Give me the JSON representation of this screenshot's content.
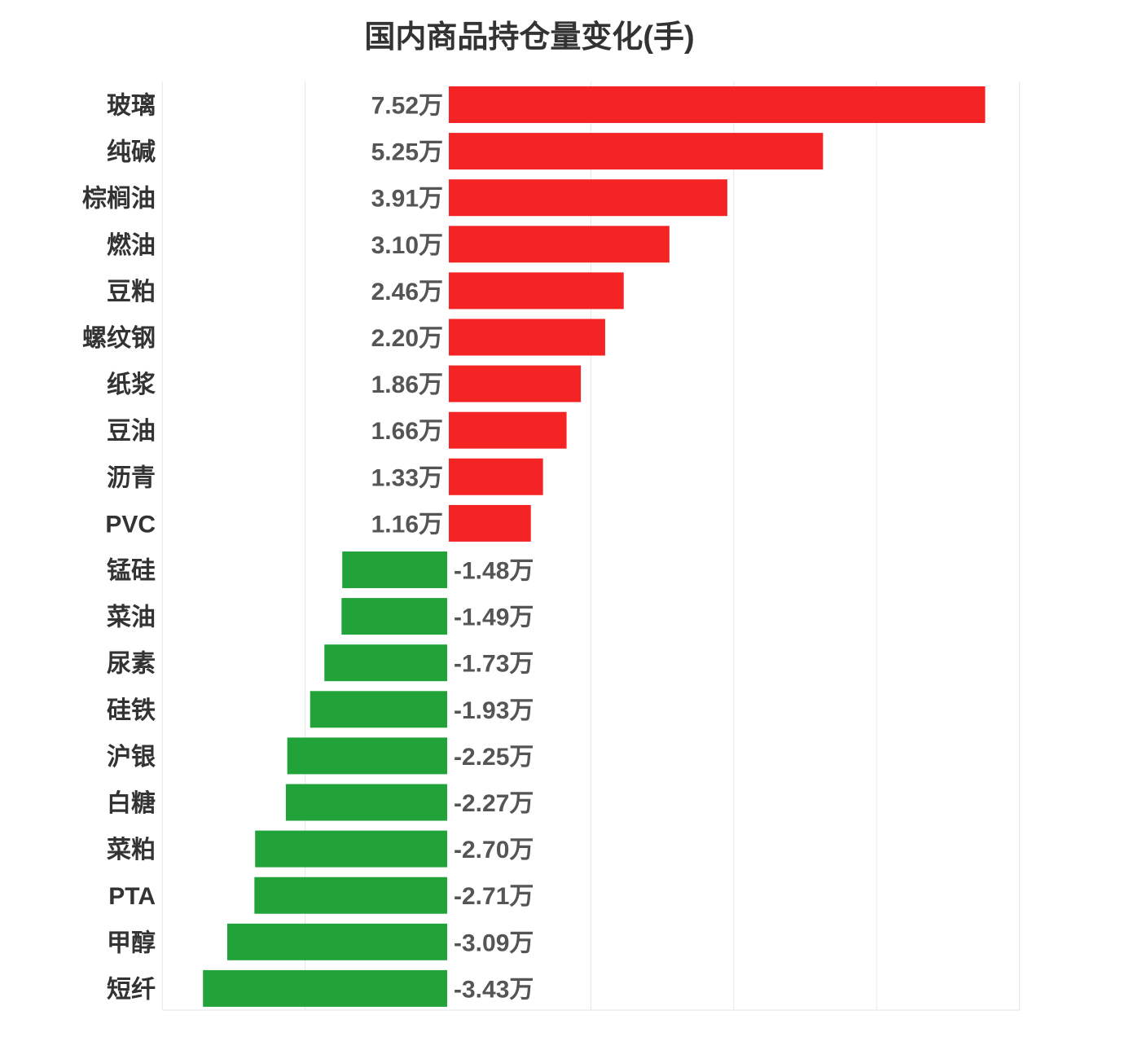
{
  "chart_data": {
    "type": "bar",
    "orientation": "horizontal",
    "title": "国内商品持仓量变化(手)",
    "xlabel": "",
    "ylabel": "",
    "grid": true,
    "xlim": [
      -4.0,
      8.0
    ],
    "colors": {
      "positive": "#f52424",
      "negative": "#22a33a"
    },
    "categories": [
      "玻璃",
      "纯碱",
      "棕榈油",
      "燃油",
      "豆粕",
      "螺纹钢",
      "纸浆",
      "豆油",
      "沥青",
      "PVC",
      "锰硅",
      "菜油",
      "尿素",
      "硅铁",
      "沪银",
      "白糖",
      "菜粕",
      "PTA",
      "甲醇",
      "短纤"
    ],
    "values": [
      7.52,
      5.25,
      3.91,
      3.1,
      2.46,
      2.2,
      1.86,
      1.66,
      1.33,
      1.16,
      -1.48,
      -1.49,
      -1.73,
      -1.93,
      -2.25,
      -2.27,
      -2.7,
      -2.71,
      -3.09,
      -3.43
    ],
    "value_labels": [
      "7.52万",
      "5.25万",
      "3.91万",
      "3.10万",
      "2.46万",
      "2.20万",
      "1.86万",
      "1.66万",
      "1.33万",
      "1.16万",
      "-1.48万",
      "-1.49万",
      "-1.73万",
      "-1.93万",
      "-2.25万",
      "-2.27万",
      "-2.70万",
      "-2.71万",
      "-3.09万",
      "-3.43万"
    ]
  }
}
